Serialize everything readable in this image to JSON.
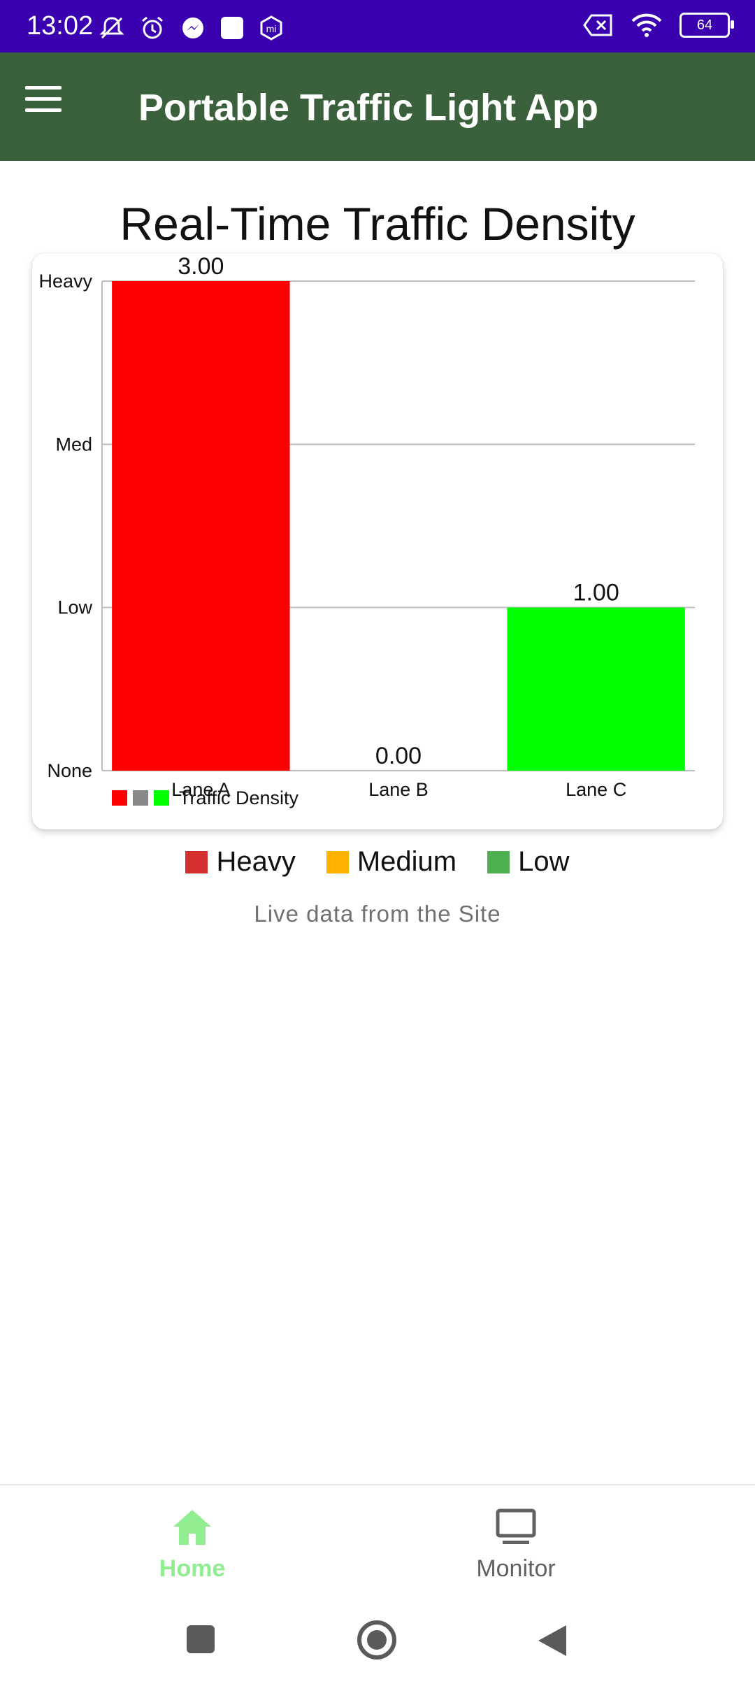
{
  "status_bar": {
    "time": "13:02",
    "battery_level": "64"
  },
  "app_bar": {
    "title": "Portable Traffic Light App",
    "background_color": "#3a603c"
  },
  "page": {
    "chart_heading": "Real-Time Traffic Density",
    "subtitle": "Live data from the Site"
  },
  "chart_data": {
    "type": "bar",
    "categories": [
      "Lane A",
      "Lane B",
      "Lane C"
    ],
    "values": [
      3.0,
      0.0,
      1.0
    ],
    "value_labels": [
      "3.00",
      "0.00",
      "1.00"
    ],
    "bar_colors": [
      "#ff0000",
      "#888888",
      "#00ff00"
    ],
    "y_ticks": [
      {
        "value": 0,
        "label": "None"
      },
      {
        "value": 1,
        "label": "Low"
      },
      {
        "value": 2,
        "label": "Med"
      },
      {
        "value": 3,
        "label": "Heavy"
      }
    ],
    "ylim": [
      0,
      3
    ],
    "grid": true,
    "series": [
      {
        "name": "Traffic Density",
        "values": [
          3.0,
          0.0,
          1.0
        ]
      }
    ],
    "legend_placement": "bottom-left"
  },
  "density_legend": [
    {
      "label": "Heavy",
      "color": "#d32f2f"
    },
    {
      "label": "Medium",
      "color": "#ffb300"
    },
    {
      "label": "Low",
      "color": "#4caf50"
    }
  ],
  "bottom_nav": {
    "items": [
      {
        "label": "Home",
        "icon": "home-icon",
        "active": true,
        "color": "#90ee90"
      },
      {
        "label": "Monitor",
        "icon": "monitor-icon",
        "active": false,
        "color": "#616161"
      }
    ]
  }
}
